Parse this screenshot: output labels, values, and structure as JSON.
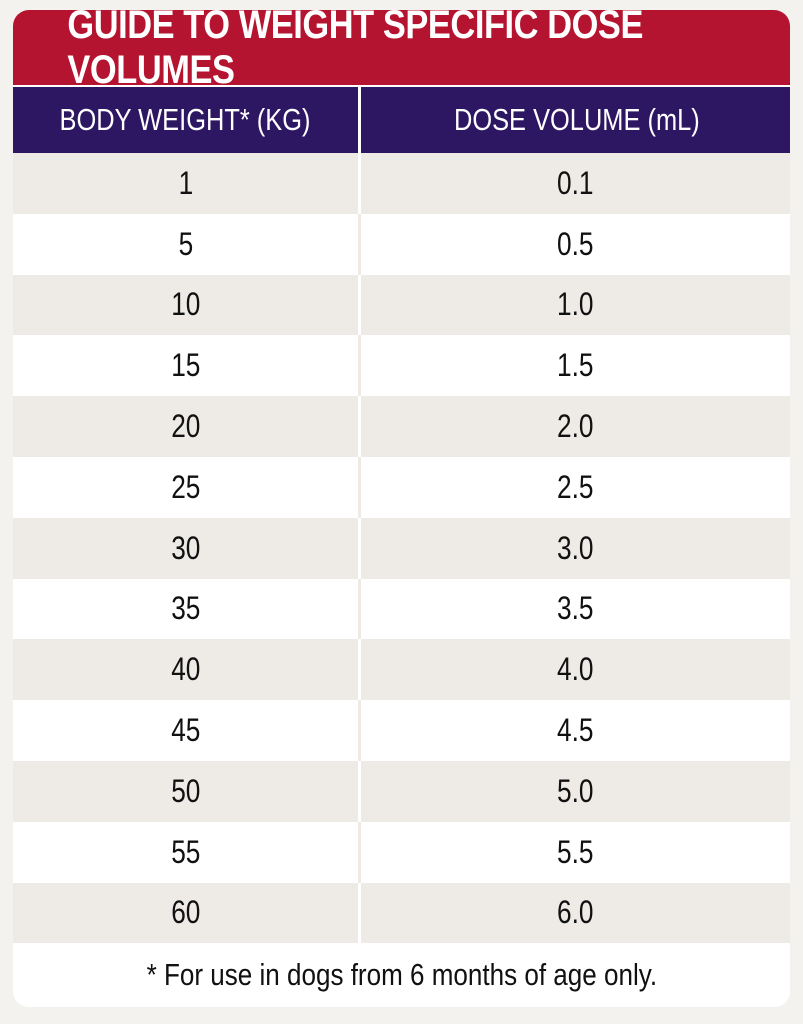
{
  "title": "GUIDE TO WEIGHT SPECIFIC DOSE VOLUMES",
  "columns": {
    "weight": "BODY WEIGHT* (KG)",
    "dose": "DOSE VOLUME (mL)"
  },
  "rows": [
    {
      "weight": "1",
      "dose": "0.1"
    },
    {
      "weight": "5",
      "dose": "0.5"
    },
    {
      "weight": "10",
      "dose": "1.0"
    },
    {
      "weight": "15",
      "dose": "1.5"
    },
    {
      "weight": "20",
      "dose": "2.0"
    },
    {
      "weight": "25",
      "dose": "2.5"
    },
    {
      "weight": "30",
      "dose": "3.0"
    },
    {
      "weight": "35",
      "dose": "3.5"
    },
    {
      "weight": "40",
      "dose": "4.0"
    },
    {
      "weight": "45",
      "dose": "4.5"
    },
    {
      "weight": "50",
      "dose": "5.0"
    },
    {
      "weight": "55",
      "dose": "5.5"
    },
    {
      "weight": "60",
      "dose": "6.0"
    }
  ],
  "footnote": "* For use in dogs from 6 months of age only.",
  "colors": {
    "title_bg": "#b51430",
    "header_bg": "#2d1763",
    "row_shade": "#eeebe6"
  }
}
